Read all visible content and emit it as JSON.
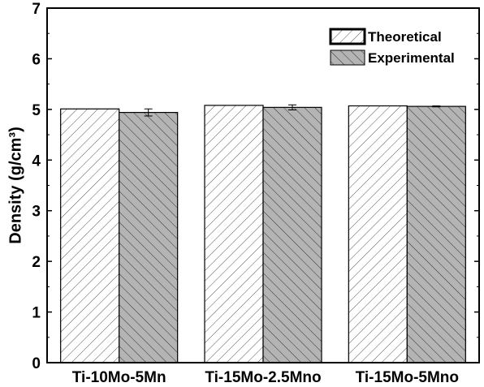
{
  "chart_data": {
    "type": "bar",
    "title": "",
    "xlabel": "",
    "ylabel": "Density (g/cm³)",
    "ylim": [
      0,
      7
    ],
    "yticks": [
      0,
      1,
      2,
      3,
      4,
      5,
      6,
      7
    ],
    "categories": [
      "Ti-10Mo-5Mn",
      "Ti-15Mo-2.5Mno",
      "Ti-15Mo-5Mno"
    ],
    "series": [
      {
        "name": "Theoretical",
        "values": [
          5.01,
          5.08,
          5.07
        ],
        "error": [
          0,
          0,
          0
        ],
        "fill": "#ffffff",
        "hatch": "forward-diagonal"
      },
      {
        "name": "Experimental",
        "values": [
          4.94,
          5.04,
          5.06
        ],
        "error": [
          0.07,
          0.05,
          0.01
        ],
        "fill": "#b4b4b4",
        "hatch": "back-diagonal"
      }
    ],
    "legend_position": "top-right",
    "grid": false
  }
}
